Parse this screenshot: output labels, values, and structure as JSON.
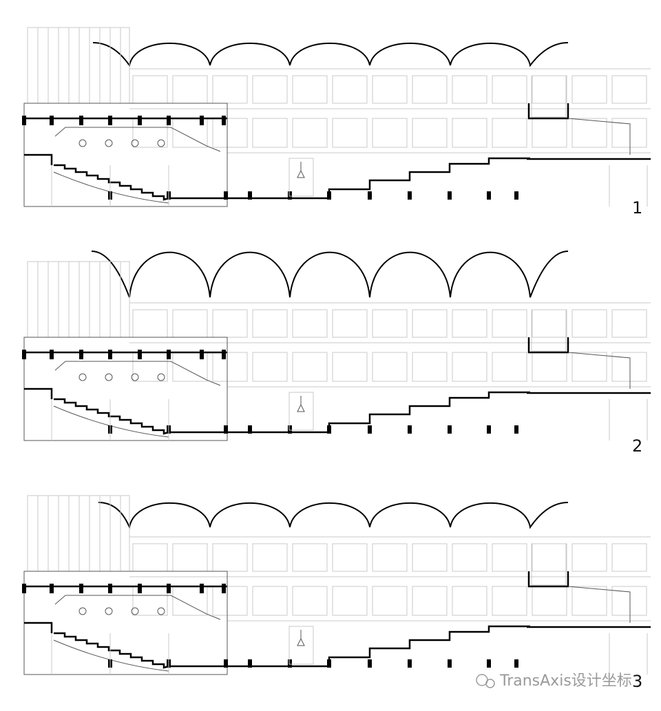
{
  "section_labels": [
    "1",
    "2",
    "3"
  ],
  "watermark": "TransAxis设计坐标"
}
